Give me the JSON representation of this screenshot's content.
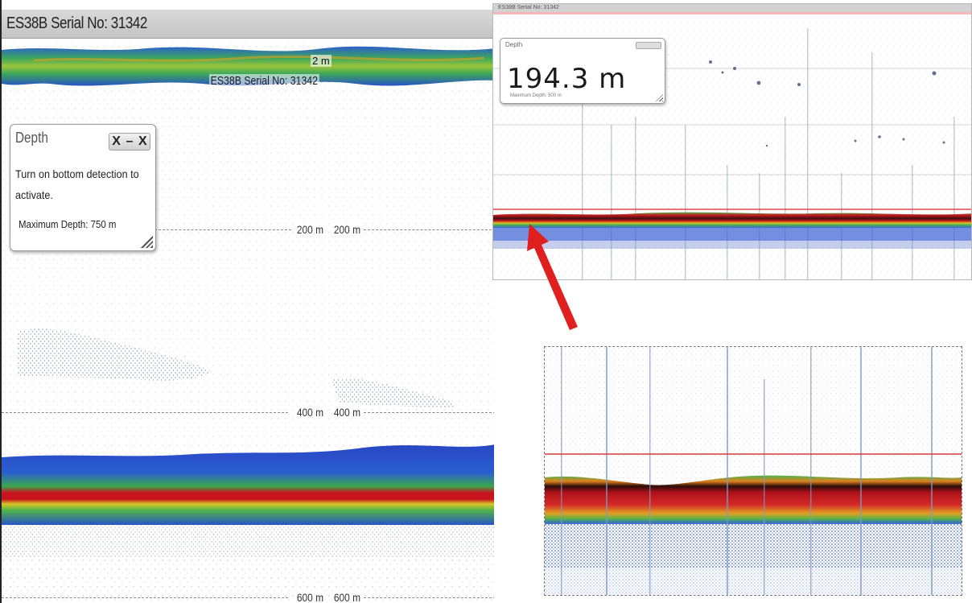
{
  "left_panel": {
    "title": "ES38B Serial No: 31342",
    "surface_label": "ES38B Serial No: 31342",
    "surface_range_label": "2 m",
    "depth_markers": [
      {
        "label_a": "200 m",
        "label_b": "200 m"
      },
      {
        "label_a": "400 m",
        "label_b": "400 m"
      },
      {
        "label_a": "600 m",
        "label_b": "600 m"
      }
    ],
    "depth_widget": {
      "title": "Depth",
      "buttons": "X–X",
      "message": "Turn on bottom detection to activate.",
      "max_depth_label": "Maximum Depth:",
      "max_depth_value": "750 m"
    }
  },
  "right_top_panel": {
    "title": "ES38B Serial No: 31342",
    "depth_widget": {
      "title": "Depth",
      "value": "194.3 m",
      "max_depth_label": "Maximum Depth:",
      "max_depth_value": "500 m"
    }
  },
  "colors": {
    "echo_red": "#c8141e",
    "echo_green": "#4fb34a",
    "echo_blue": "#1f4fd1",
    "arrow_red": "#e0201e",
    "bottom_line_red": "#e04848"
  },
  "annotation": {
    "arrow_icon": "red-arrow-icon"
  }
}
